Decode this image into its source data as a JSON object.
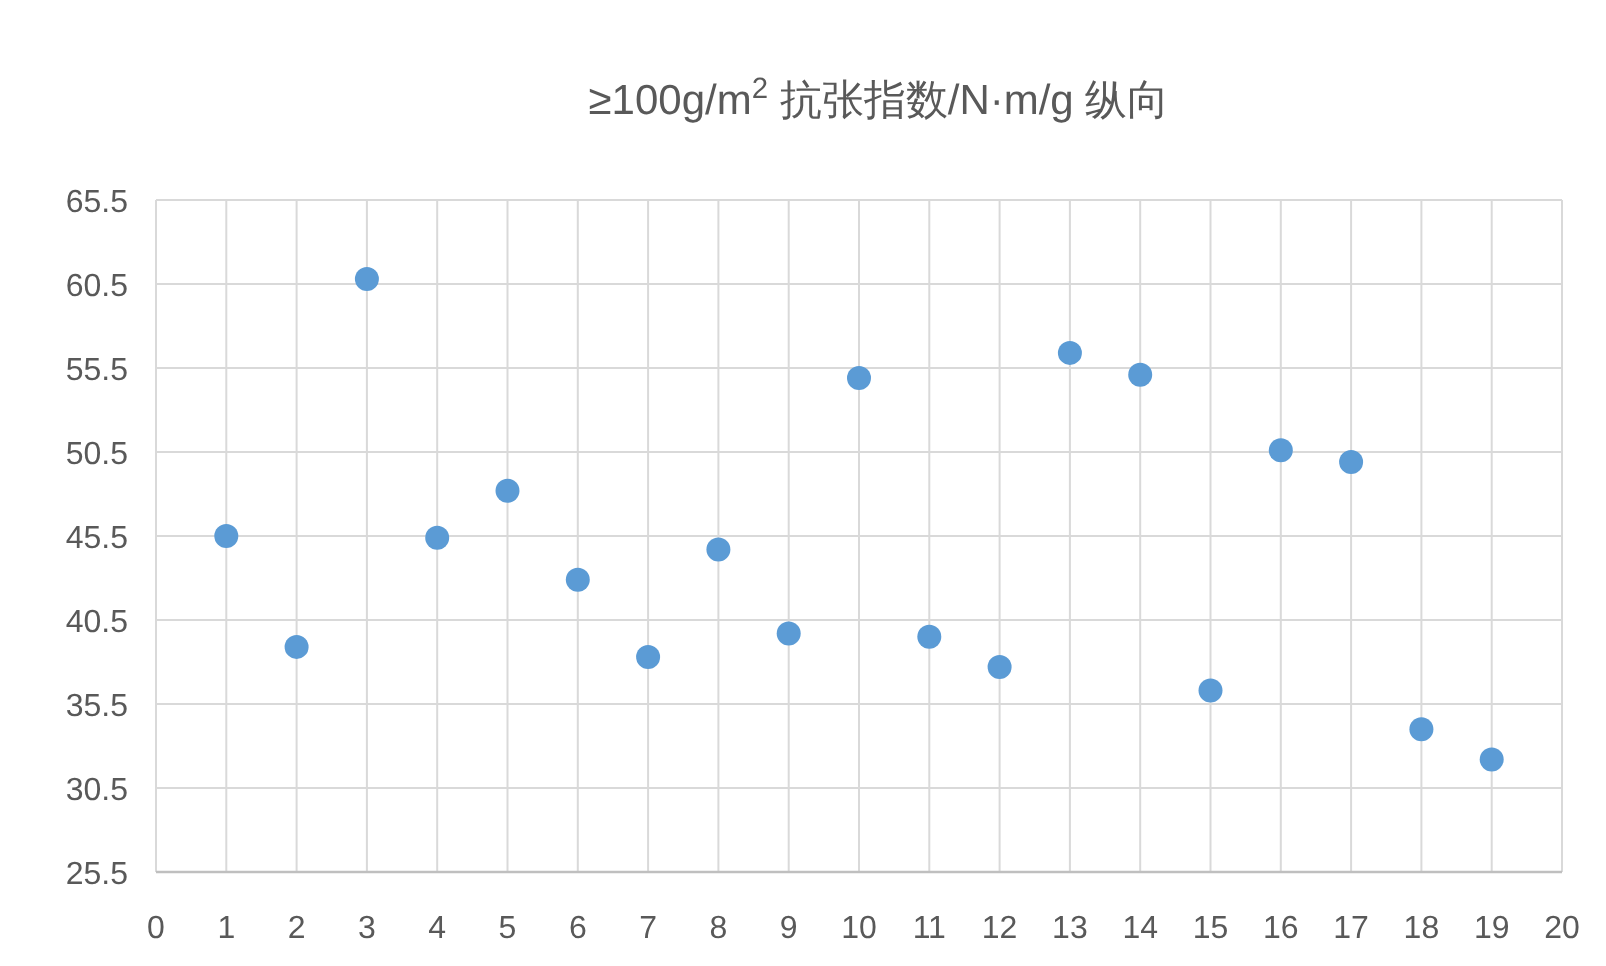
{
  "chart_data": {
    "type": "scatter",
    "title": "≥100g/m$^{2}$ 抗张指数/N·m/g  纵向",
    "x": [
      1,
      2,
      3,
      4,
      5,
      6,
      7,
      8,
      9,
      10,
      11,
      12,
      13,
      14,
      15,
      16,
      17,
      18,
      19
    ],
    "series": [
      {
        "color": "#5b9bd5",
        "values": [
          45.5,
          38.9,
          60.8,
          45.4,
          48.2,
          42.9,
          38.3,
          44.7,
          39.7,
          54.9,
          39.5,
          37.7,
          56.4,
          55.1,
          36.3,
          50.6,
          49.9,
          34.0,
          32.2
        ]
      }
    ],
    "xlim": [
      0,
      20
    ],
    "xticks": [
      0,
      1,
      2,
      3,
      4,
      5,
      6,
      7,
      8,
      9,
      10,
      11,
      12,
      13,
      14,
      15,
      16,
      17,
      18,
      19,
      20
    ],
    "ylim": [
      25.5,
      65.5
    ],
    "yticks": [
      25.5,
      30.5,
      35.5,
      40.5,
      45.5,
      50.5,
      55.5,
      60.5,
      65.5
    ],
    "grid": true,
    "marker": "circle"
  }
}
